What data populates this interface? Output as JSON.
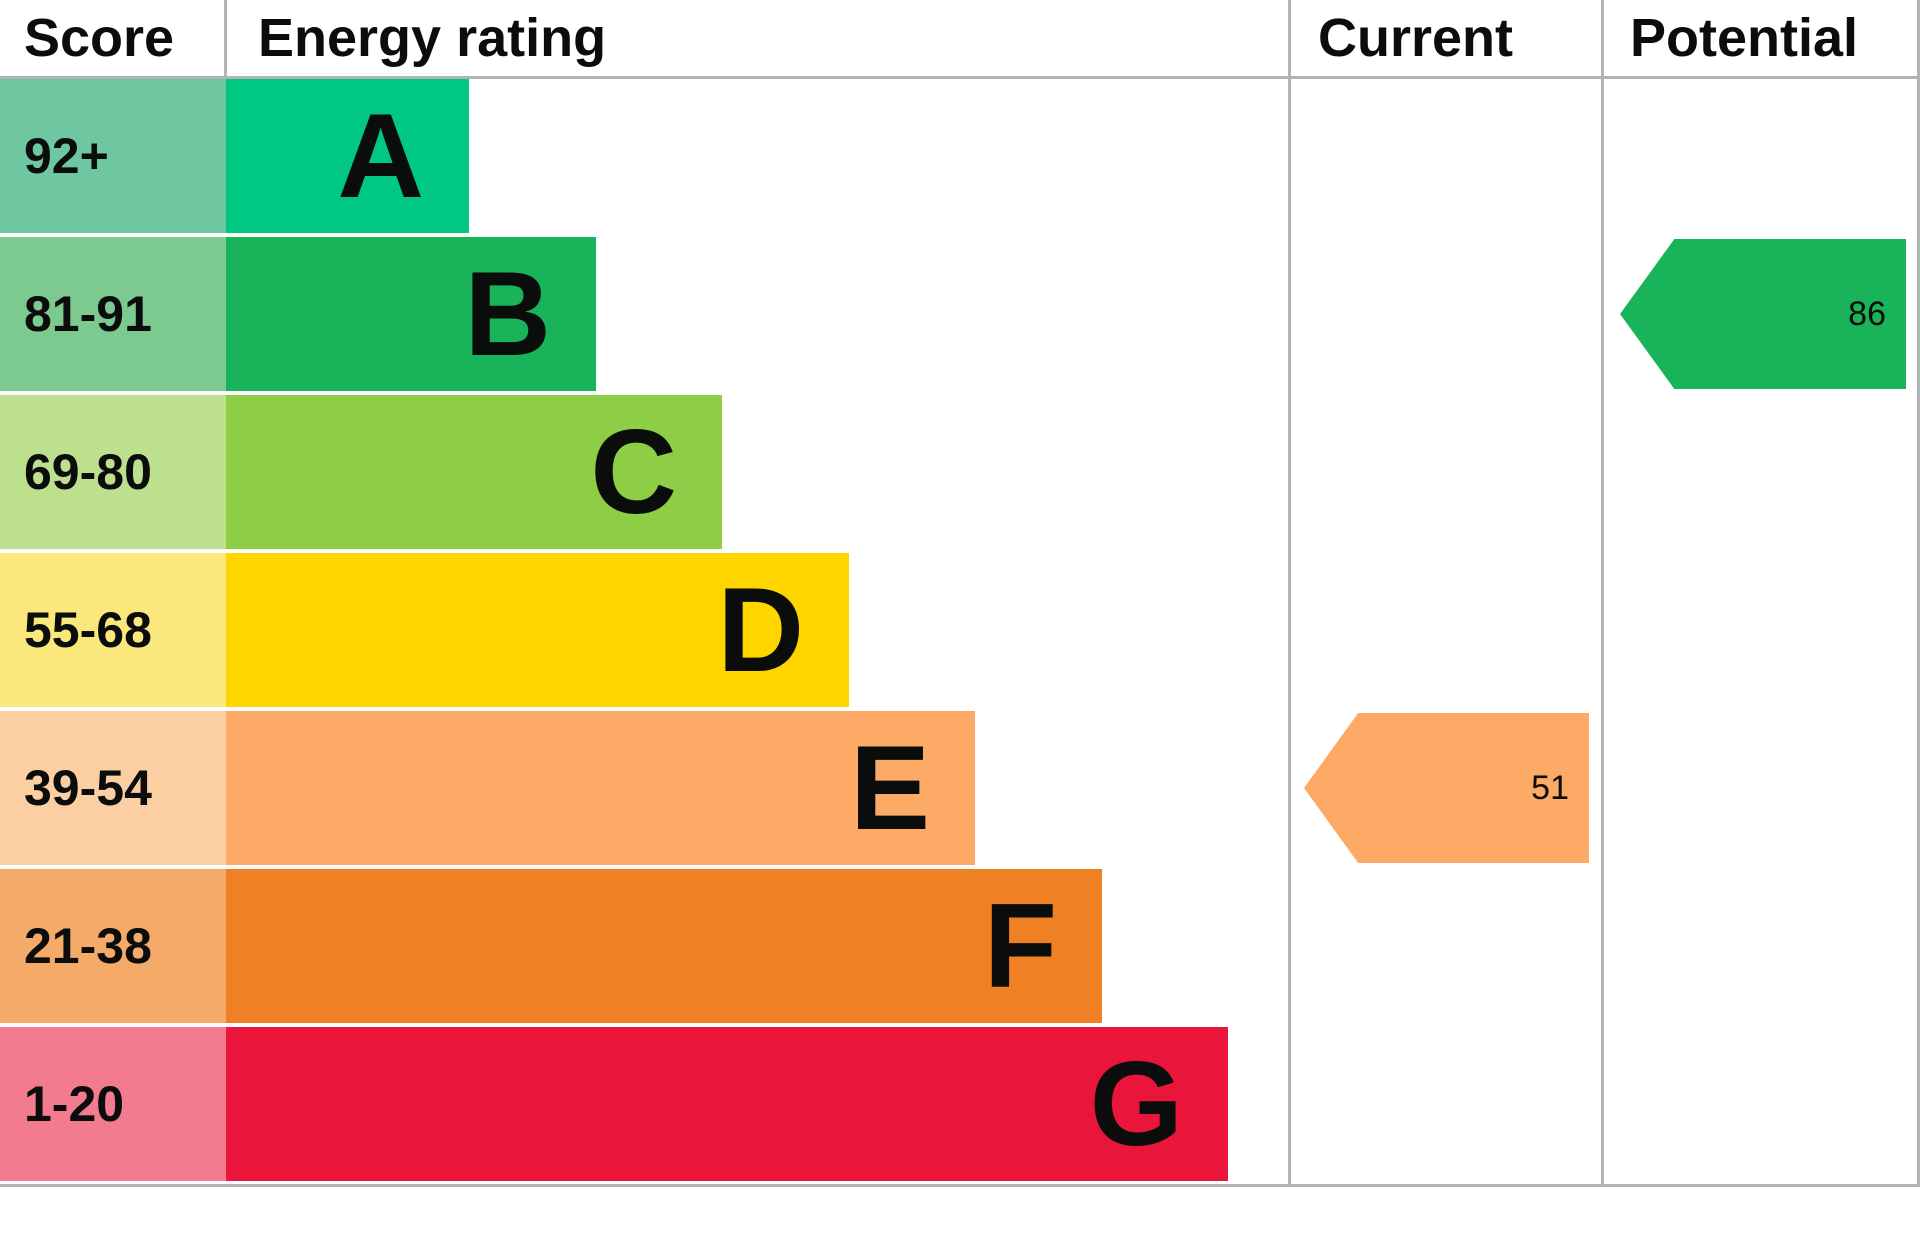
{
  "header": {
    "score": "Score",
    "energy_rating": "Energy rating",
    "current": "Current",
    "potential": "Potential"
  },
  "bands": [
    {
      "letter": "A",
      "score": "92+",
      "color": "#00c781",
      "tint": "#6fc7a1"
    },
    {
      "letter": "B",
      "score": "81-91",
      "color": "#19b459",
      "tint": "#7cca8f"
    },
    {
      "letter": "C",
      "score": "69-80",
      "color": "#8dce46",
      "tint": "#bce08e"
    },
    {
      "letter": "D",
      "score": "55-68",
      "color": "#ffd500",
      "tint": "#fae87d"
    },
    {
      "letter": "E",
      "score": "39-54",
      "color": "#fcaa65",
      "tint": "#fbcfa2"
    },
    {
      "letter": "F",
      "score": "21-38",
      "color": "#ef8023",
      "tint": "#f4aa68"
    },
    {
      "letter": "G",
      "score": "1-20",
      "color": "#e9153b",
      "tint": "#f27b8f"
    }
  ],
  "current": {
    "value": "51",
    "band": "E",
    "color": "#fcaa65"
  },
  "potential": {
    "value": "86",
    "band": "B",
    "color": "#19b459"
  },
  "border_color": "#b1b4b6",
  "chart_data": {
    "type": "bar",
    "title": "Energy rating",
    "categories": [
      "A",
      "B",
      "C",
      "D",
      "E",
      "F",
      "G"
    ],
    "score_ranges": [
      "92+",
      "81-91",
      "69-80",
      "55-68",
      "39-54",
      "21-38",
      "1-20"
    ],
    "series": [
      {
        "name": "Current",
        "value": 51,
        "band": "E"
      },
      {
        "name": "Potential",
        "value": 86,
        "band": "B"
      }
    ],
    "band_colors": {
      "A": "#00c781",
      "B": "#19b459",
      "C": "#8dce46",
      "D": "#ffd500",
      "E": "#fcaa65",
      "F": "#ef8023",
      "G": "#e9153b"
    },
    "legend_position": "none",
    "grid": false
  }
}
